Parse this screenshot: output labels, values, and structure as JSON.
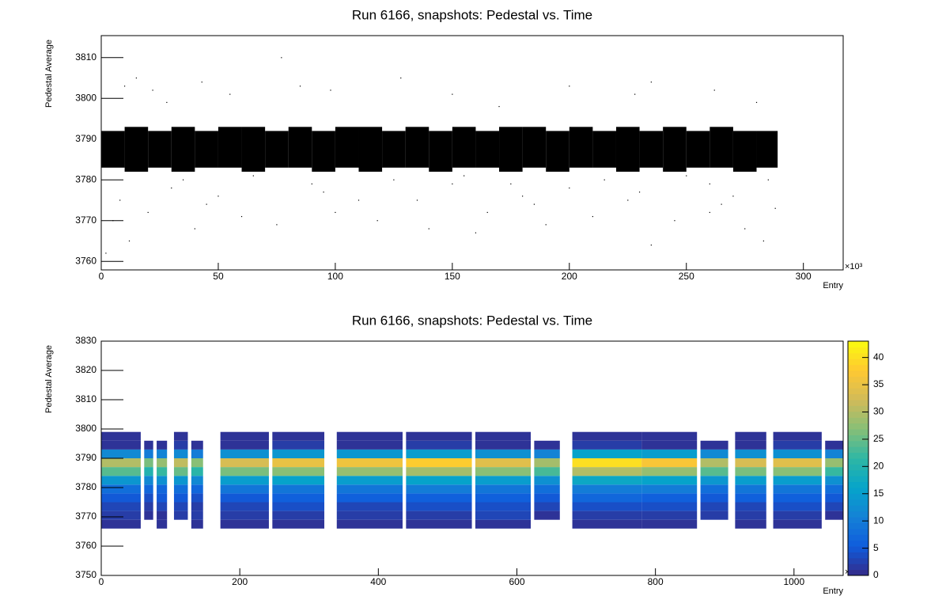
{
  "chart_data": [
    {
      "type": "scatter",
      "title": "Run 6166, snapshots: Pedestal vs. Time",
      "xlabel": "Entry",
      "ylabel": "Pedestal Average",
      "x_multiplier": "×10³",
      "color": "#000000",
      "xlim": [
        0,
        317
      ],
      "xticks": [
        0,
        50,
        100,
        150,
        200,
        250,
        300
      ],
      "ylim": [
        3757.9,
        3815.4
      ],
      "yticks": [
        3760,
        3770,
        3780,
        3790,
        3800,
        3810
      ],
      "band_edges": [
        0,
        10,
        20,
        30,
        40,
        50,
        60,
        70,
        80,
        90,
        100,
        110,
        120,
        130,
        140,
        150,
        160,
        170,
        180,
        190,
        200,
        210,
        220,
        230,
        240,
        250,
        260,
        270,
        280,
        289
      ],
      "band_low": [
        3783,
        3782,
        3783,
        3782,
        3783,
        3783,
        3782,
        3783,
        3783,
        3782,
        3783,
        3782,
        3783,
        3783,
        3782,
        3783,
        3783,
        3782,
        3783,
        3782,
        3783,
        3783,
        3782,
        3783,
        3782,
        3783,
        3783,
        3782,
        3783
      ],
      "band_high": [
        3792,
        3793,
        3792,
        3793,
        3792,
        3793,
        3793,
        3792,
        3793,
        3792,
        3793,
        3793,
        3792,
        3793,
        3792,
        3793,
        3792,
        3793,
        3793,
        3792,
        3793,
        3792,
        3793,
        3792,
        3793,
        3792,
        3793,
        3792,
        3792
      ],
      "x": [
        10,
        15,
        22,
        28,
        43,
        55,
        77,
        85,
        98,
        128,
        150,
        170,
        200,
        228,
        235,
        262,
        280,
        5,
        12,
        20,
        40,
        60,
        75,
        100,
        118,
        140,
        160,
        165,
        190,
        210,
        235,
        245,
        260,
        275,
        283,
        288,
        50,
        110,
        180,
        230,
        270,
        30,
        150,
        200,
        260,
        2,
        35,
        65,
        90,
        125,
        155,
        175,
        215,
        250,
        285,
        8,
        45,
        95,
        135,
        185,
        225,
        265
      ],
      "y": [
        3803,
        3805,
        3802,
        3799,
        3804,
        3801,
        3810,
        3803,
        3802,
        3805,
        3801,
        3798,
        3803,
        3801,
        3804,
        3802,
        3799,
        3770,
        3765,
        3772,
        3768,
        3771,
        3769,
        3772,
        3770,
        3768,
        3767,
        3772,
        3769,
        3771,
        3764,
        3770,
        3772,
        3768,
        3765,
        3773,
        3776,
        3775,
        3776,
        3777,
        3776,
        3778,
        3779,
        3778,
        3779,
        3762,
        3780,
        3781,
        3779,
        3780,
        3781,
        3779,
        3780,
        3781,
        3780,
        3775,
        3774,
        3777,
        3775,
        3774,
        3775,
        3774
      ]
    },
    {
      "type": "heatmap",
      "title": "Run 6166, snapshots: Pedestal vs. Time",
      "xlabel": "Entry",
      "ylabel": "Pedestal Average",
      "x_multiplier": "×10³",
      "xlim": [
        0,
        1071
      ],
      "xticks": [
        0,
        200,
        400,
        600,
        800,
        1000
      ],
      "ylim": [
        3750,
        3830
      ],
      "yticks": [
        3750,
        3760,
        3770,
        3780,
        3790,
        3800,
        3810,
        3820,
        3830
      ],
      "zlim": [
        0,
        43
      ],
      "zticks": [
        0,
        5,
        10,
        15,
        20,
        25,
        30,
        35,
        40
      ],
      "palette": [
        "#352a87",
        "#0f5cdd",
        "#1481d6",
        "#06a4ca",
        "#2eb7a4",
        "#87bf77",
        "#d1bb59",
        "#fec832",
        "#f9fb0e"
      ],
      "xranges": [
        [
          0,
          57
        ],
        [
          62,
          75
        ],
        [
          80,
          95
        ],
        [
          105,
          125
        ],
        [
          130,
          147
        ],
        [
          172,
          242
        ],
        [
          247,
          322
        ],
        [
          340,
          435
        ],
        [
          440,
          535
        ],
        [
          540,
          620
        ],
        [
          625,
          662
        ],
        [
          680,
          780
        ],
        [
          780,
          860
        ],
        [
          865,
          905
        ],
        [
          915,
          960
        ],
        [
          970,
          1040
        ],
        [
          1045,
          1071
        ]
      ],
      "yedges": [
        3766,
        3769,
        3772,
        3775,
        3778,
        3781,
        3784,
        3787,
        3790,
        3793,
        3796,
        3799
      ],
      "z": [
        [
          1,
          2,
          3,
          5,
          8,
          14,
          24,
          30,
          12,
          1,
          1
        ],
        [
          0,
          1,
          2,
          4,
          7,
          12,
          20,
          26,
          10,
          1,
          0
        ],
        [
          1,
          1,
          3,
          5,
          7,
          13,
          22,
          28,
          11,
          1,
          0
        ],
        [
          0,
          2,
          3,
          5,
          8,
          14,
          25,
          31,
          12,
          2,
          1
        ],
        [
          1,
          2,
          2,
          4,
          7,
          12,
          21,
          27,
          10,
          1,
          0
        ],
        [
          1,
          2,
          3,
          5,
          9,
          15,
          26,
          33,
          13,
          1,
          1
        ],
        [
          1,
          2,
          4,
          6,
          9,
          16,
          27,
          35,
          14,
          2,
          1
        ],
        [
          1,
          2,
          3,
          6,
          9,
          15,
          28,
          36,
          14,
          1,
          1
        ],
        [
          1,
          2,
          4,
          6,
          10,
          16,
          29,
          38,
          15,
          2,
          1
        ],
        [
          1,
          3,
          4,
          6,
          9,
          15,
          27,
          34,
          13,
          1,
          1
        ],
        [
          0,
          1,
          3,
          5,
          8,
          13,
          23,
          29,
          11,
          1,
          0
        ],
        [
          1,
          2,
          4,
          7,
          10,
          17,
          30,
          40,
          16,
          2,
          1
        ],
        [
          1,
          2,
          4,
          6,
          10,
          16,
          28,
          37,
          15,
          1,
          1
        ],
        [
          0,
          2,
          3,
          5,
          8,
          14,
          24,
          30,
          12,
          1,
          0
        ],
        [
          1,
          2,
          3,
          6,
          9,
          15,
          26,
          33,
          13,
          1,
          1
        ],
        [
          1,
          2,
          4,
          6,
          9,
          15,
          27,
          34,
          13,
          2,
          1
        ],
        [
          0,
          1,
          3,
          5,
          8,
          13,
          22,
          28,
          11,
          1,
          0
        ]
      ]
    }
  ]
}
